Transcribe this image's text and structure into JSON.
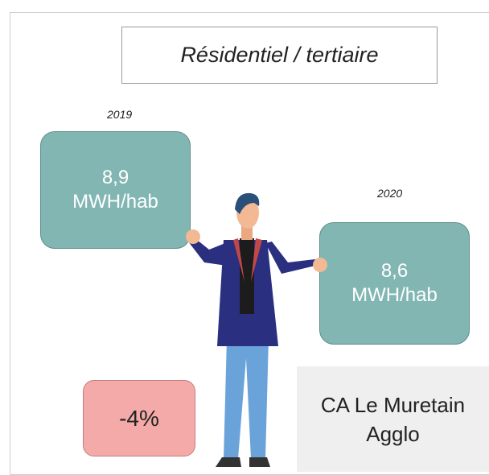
{
  "title": "Résidentiel / tertiaire",
  "items": [
    {
      "year": "2019",
      "value": "8,9",
      "unit": "MWH/hab"
    },
    {
      "year": "2020",
      "value": "8,6",
      "unit": "MWH/hab"
    }
  ],
  "change": "-4%",
  "territory": "CA Le Muretain Agglo"
}
